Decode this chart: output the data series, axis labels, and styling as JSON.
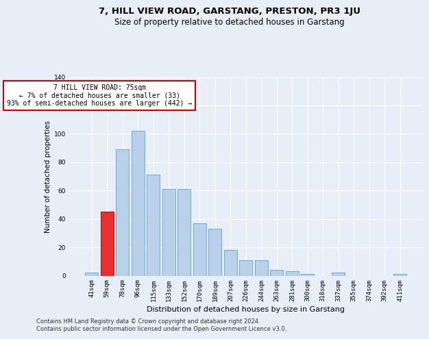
{
  "title": "7, HILL VIEW ROAD, GARSTANG, PRESTON, PR3 1JU",
  "subtitle": "Size of property relative to detached houses in Garstang",
  "xlabel": "Distribution of detached houses by size in Garstang",
  "ylabel": "Number of detached properties",
  "bar_labels": [
    "41sqm",
    "59sqm",
    "78sqm",
    "96sqm",
    "115sqm",
    "133sqm",
    "152sqm",
    "170sqm",
    "189sqm",
    "207sqm",
    "226sqm",
    "244sqm",
    "263sqm",
    "281sqm",
    "300sqm",
    "318sqm",
    "337sqm",
    "355sqm",
    "374sqm",
    "392sqm",
    "411sqm"
  ],
  "bar_values": [
    2,
    45,
    89,
    102,
    71,
    61,
    61,
    37,
    33,
    18,
    11,
    11,
    4,
    3,
    1,
    0,
    2,
    0,
    0,
    0,
    1
  ],
  "bar_color": "#b8d0e8",
  "bar_edge_color": "#6aaad4",
  "highlight_bar_index": 1,
  "highlight_bar_color": "#e83030",
  "highlight_bar_edge_color": "#cc0000",
  "annotation_text": "7 HILL VIEW ROAD: 75sqm\n← 7% of detached houses are smaller (33)\n93% of semi-detached houses are larger (442) →",
  "annotation_box_color": "#ffffff",
  "annotation_box_edge_color": "#cc0000",
  "ylim": [
    0,
    140
  ],
  "yticks": [
    0,
    20,
    40,
    60,
    80,
    100,
    120,
    140
  ],
  "footer_line1": "Contains HM Land Registry data © Crown copyright and database right 2024.",
  "footer_line2": "Contains public sector information licensed under the Open Government Licence v3.0.",
  "background_color": "#e8eef7",
  "plot_bg_color": "#e8eef7",
  "grid_color": "#ffffff",
  "title_fontsize": 9.5,
  "subtitle_fontsize": 8.5,
  "xlabel_fontsize": 8,
  "ylabel_fontsize": 7.5,
  "tick_fontsize": 6.5,
  "annotation_fontsize": 7,
  "footer_fontsize": 6
}
